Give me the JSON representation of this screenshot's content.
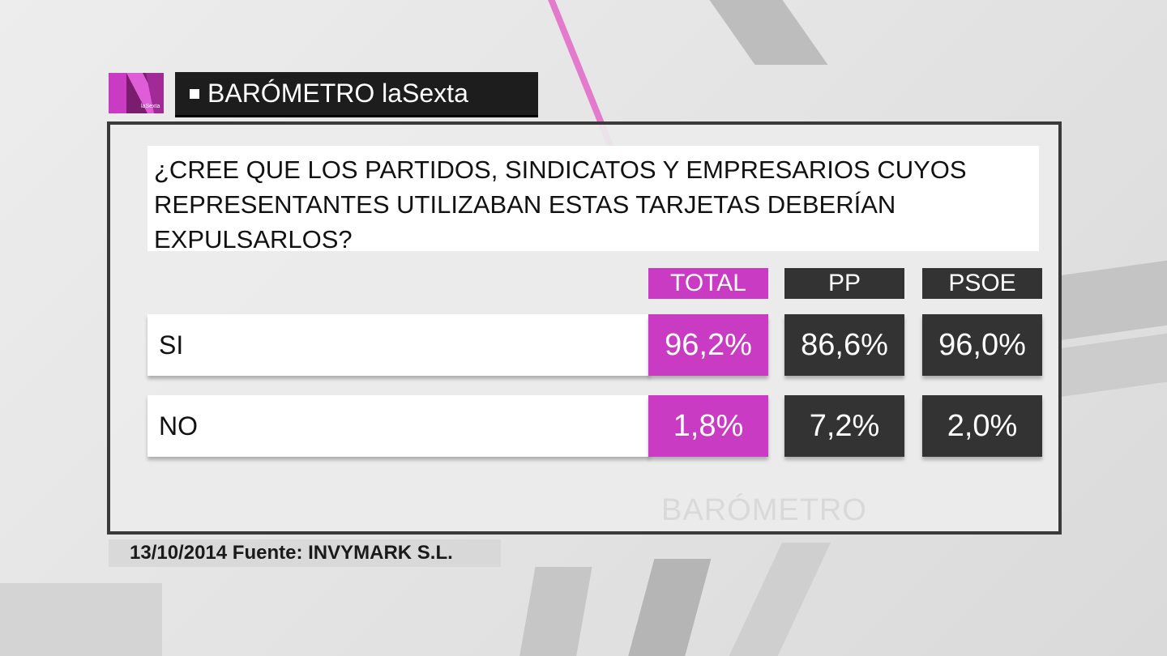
{
  "header": {
    "logo_letter": "N",
    "logo_sub": "laSexta",
    "title": "BARÓMETRO laSexta"
  },
  "question": "¿CREE QUE LOS PARTIDOS, SINDICATOS Y EMPRESARIOS CUYOS REPRESENTANTES UTILIZABAN ESTAS TARJETAS DEBERÍAN EXPULSARLOS?",
  "watermark": "BARÓMETRO",
  "chart_data": {
    "type": "table",
    "title": "¿CREE QUE LOS PARTIDOS, SINDICATOS Y EMPRESARIOS CUYOS REPRESENTANTES UTILIZABAN ESTAS TARJETAS DEBERÍAN EXPULSARLOS?",
    "columns": [
      "TOTAL",
      "PP",
      "PSOE"
    ],
    "rows": [
      {
        "label": "SI",
        "values": [
          "96,2%",
          "86,6%",
          "96,0%"
        ]
      },
      {
        "label": "NO",
        "values": [
          "1,8%",
          "7,2%",
          "2,0%"
        ]
      }
    ]
  },
  "colors": {
    "total": "#c93bc3",
    "party": "#333333",
    "logo": "#c93bc3"
  },
  "footer": {
    "source": "13/10/2014 Fuente: INVYMARK S.L."
  }
}
